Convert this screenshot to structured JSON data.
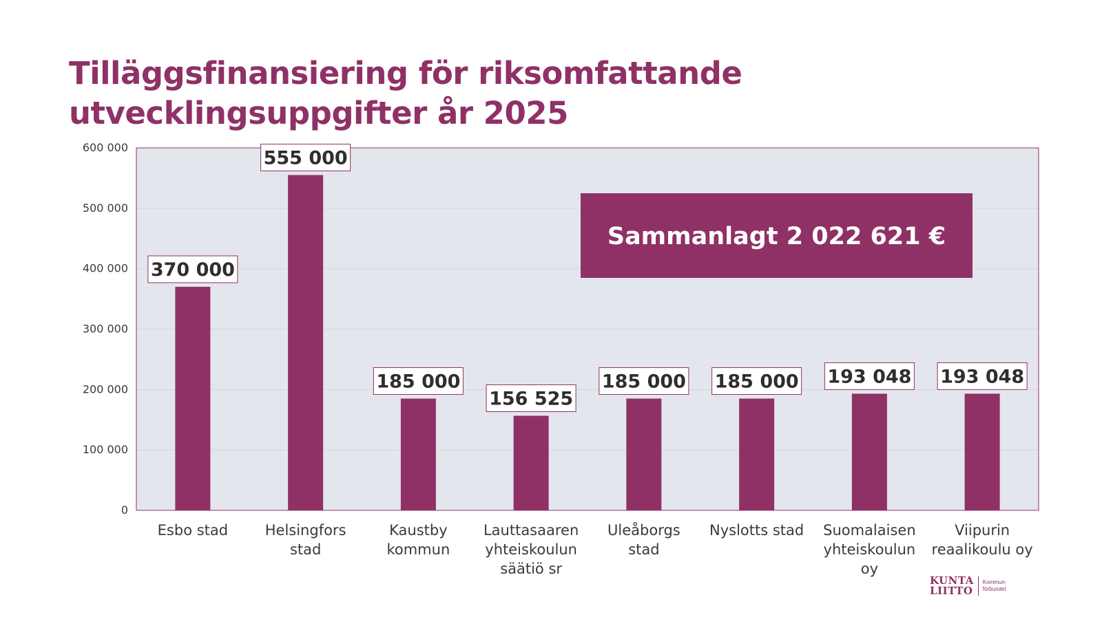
{
  "title": {
    "line1": "Tilläggsfinansiering för riksomfattande",
    "line2": "utvecklingsuppgifter år 2025"
  },
  "total_label": "Sammanlagt 2 022 621 €",
  "logo": {
    "word_top": "KUNTA",
    "word_bottom": "LIITTO",
    "sub_top": "Kommun-",
    "sub_bottom": "förbundet"
  },
  "colors": {
    "accent": "#8f3166",
    "plot_background": "#e3e6ec",
    "grid": "#d3d6dd",
    "axis_text": "#3a3a3a",
    "label_text": "#2e2e2e"
  },
  "chart_data": {
    "type": "bar",
    "categories": [
      [
        "Esbo stad"
      ],
      [
        "Helsingfors",
        "stad"
      ],
      [
        "Kaustby",
        "kommun"
      ],
      [
        "Lauttasaaren",
        "yhteiskoulun",
        "säätiö sr"
      ],
      [
        "Uleåborgs",
        "stad"
      ],
      [
        "Nyslotts stad"
      ],
      [
        "Suomalaisen",
        "yhteiskoulun",
        "oy"
      ],
      [
        "Viipurin",
        "reaalikoulu oy"
      ]
    ],
    "values": [
      370000,
      555000,
      185000,
      156525,
      185000,
      185000,
      193048,
      193048
    ],
    "data_labels": [
      "370 000",
      "555 000",
      "185 000",
      "156 525",
      "185 000",
      "185 000",
      "193 048",
      "193 048"
    ],
    "ylim": [
      0,
      600000
    ],
    "yticks": [
      0,
      100000,
      200000,
      300000,
      400000,
      500000,
      600000
    ],
    "ytick_labels": [
      "0",
      "100 000",
      "200 000",
      "300 000",
      "400 000",
      "500 000",
      "600 000"
    ],
    "grid": true,
    "xlabel": "",
    "ylabel": ""
  }
}
